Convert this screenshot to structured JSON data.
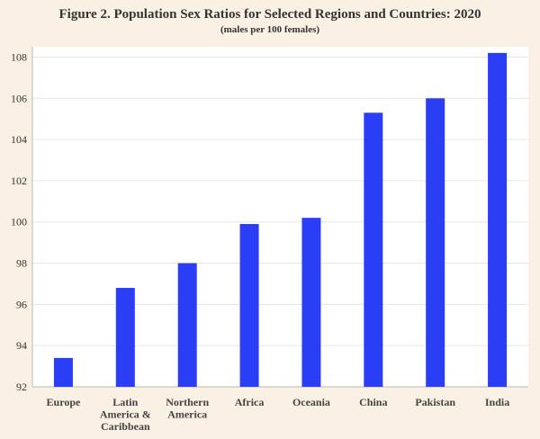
{
  "chart_data": {
    "type": "bar",
    "title": "Figure 2. Population Sex Ratios for Selected Regions and Countries: 2020",
    "subtitle": "(males per 100 females)",
    "xlabel": "",
    "ylabel": "",
    "categories": [
      [
        "Europe"
      ],
      [
        "Latin",
        "America &",
        "Caribbean"
      ],
      [
        "Northern",
        "America"
      ],
      [
        "Africa"
      ],
      [
        "Oceania"
      ],
      [
        "China"
      ],
      [
        "Pakistan"
      ],
      [
        "India"
      ]
    ],
    "values": [
      93.4,
      96.8,
      98.0,
      99.9,
      100.2,
      105.3,
      106.0,
      108.2
    ],
    "ylim": [
      92,
      108
    ],
    "yticks": [
      92,
      94,
      96,
      98,
      100,
      102,
      104,
      106,
      108
    ],
    "grid": true,
    "legend": "none",
    "colors": {
      "bar": "#2a3ff5",
      "background": "#fbf0e4",
      "plot_background": "#ffffff",
      "grid": "#e6e6e6",
      "axis": "#b8b8b8"
    }
  }
}
